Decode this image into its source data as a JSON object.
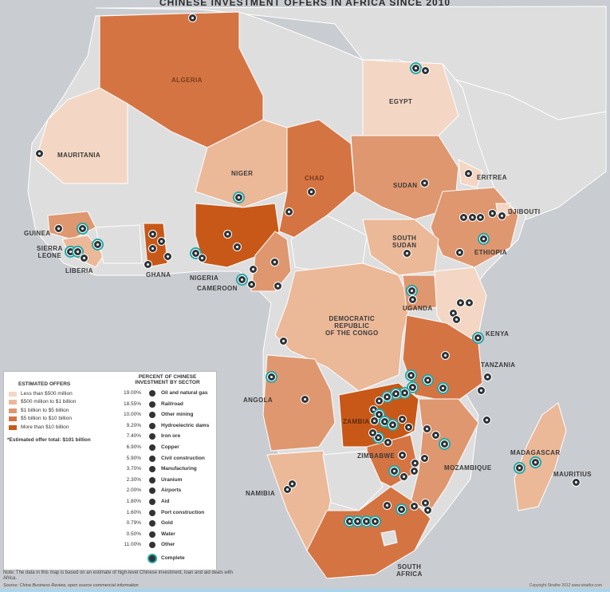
{
  "title": "CHINESE INVESTMENT OFFERS IN AFRICA SINCE 2010",
  "colors": {
    "sea": "#c9ccd0",
    "land": "#dedede",
    "lt500m": "#f3d6c3",
    "500m_1b": "#ebb898",
    "1b_5b": "#df9770",
    "5b_10b": "#d57443",
    "gt10b": "#c85818",
    "pin": "#2f3437",
    "complete_ring": "#27a6a6"
  },
  "countries": {
    "algeria": "ALGERIA",
    "egypt": "EGYPT",
    "mauritania": "MAURITANIA",
    "niger": "NIGER",
    "chad": "CHAD",
    "sudan": "SUDAN",
    "eritrea": "ERITREA",
    "djibouti": "DJIBOUTI",
    "guinea": "GUINEA",
    "sierra_leone": "SIERRA\nLEONE",
    "liberia": "LIBERIA",
    "ghana": "GHANA",
    "nigeria": "NIGERIA",
    "cameroon": "CAMEROON",
    "south_sudan": "SOUTH\nSUDAN",
    "ethiopia": "ETHIOPIA",
    "uganda": "UGANDA",
    "drc": "DEMOCRATIC\nREPUBLIC\nOF THE CONGO",
    "kenya": "KENYA",
    "tanzania": "TANZANIA",
    "angola": "ANGOLA",
    "zambia": "ZAMBIA",
    "zimbabwe": "ZIMBABWE",
    "mozambique": "MOZAMBIQUE",
    "madagascar": "MADAGASCAR",
    "mauritius": "MAURITIUS",
    "namibia": "NAMIBIA",
    "south_africa": "SOUTH\nAFRICA"
  },
  "legend": {
    "offers_heading": "ESTIMATED OFFERS",
    "offers": [
      {
        "label": "Less than $500 million",
        "color": "#f3d6c3"
      },
      {
        "label": "$500 million to $1 billion",
        "color": "#ebb898"
      },
      {
        "label": "$1 billion to $5 billion",
        "color": "#df9770"
      },
      {
        "label": "$5 billion to $10 billion",
        "color": "#d57443"
      },
      {
        "label": "More than $10 billion",
        "color": "#c85818"
      }
    ],
    "offer_total": "*Estimated offer total: $101 billion",
    "sector_heading": "PERCENT OF CHINESE\nINVESTMENT BY SECTOR",
    "sectors": [
      {
        "pct": "19.00%",
        "name": "Oil and natural gas"
      },
      {
        "pct": "18.55%",
        "name": "Rail/road"
      },
      {
        "pct": "10.00%",
        "name": "Other mining"
      },
      {
        "pct": "9.20%",
        "name": "Hydroelectric dams"
      },
      {
        "pct": "7.40%",
        "name": "Iron ore"
      },
      {
        "pct": "6.90%",
        "name": "Copper"
      },
      {
        "pct": "5.90%",
        "name": "Civil construction"
      },
      {
        "pct": "3.70%",
        "name": "Manufacturing"
      },
      {
        "pct": "2.30%",
        "name": "Uranium"
      },
      {
        "pct": "2.00%",
        "name": "Airports"
      },
      {
        "pct": "1.80%",
        "name": "Aid"
      },
      {
        "pct": "1.60%",
        "name": "Port construction"
      },
      {
        "pct": "0.79%",
        "name": "Gold"
      },
      {
        "pct": "0.50%",
        "name": "Water"
      },
      {
        "pct": "11.00%",
        "name": "Other"
      }
    ],
    "complete_label": "Complete"
  },
  "note": "Note: The data in this map is based on an estimate of high-level Chinese investment, loan and aid deals with Africa.",
  "source": "Source: China Business Review, open source commercial information",
  "copyright": "Copyright Stratfor 2012    www.stratfor.com"
}
